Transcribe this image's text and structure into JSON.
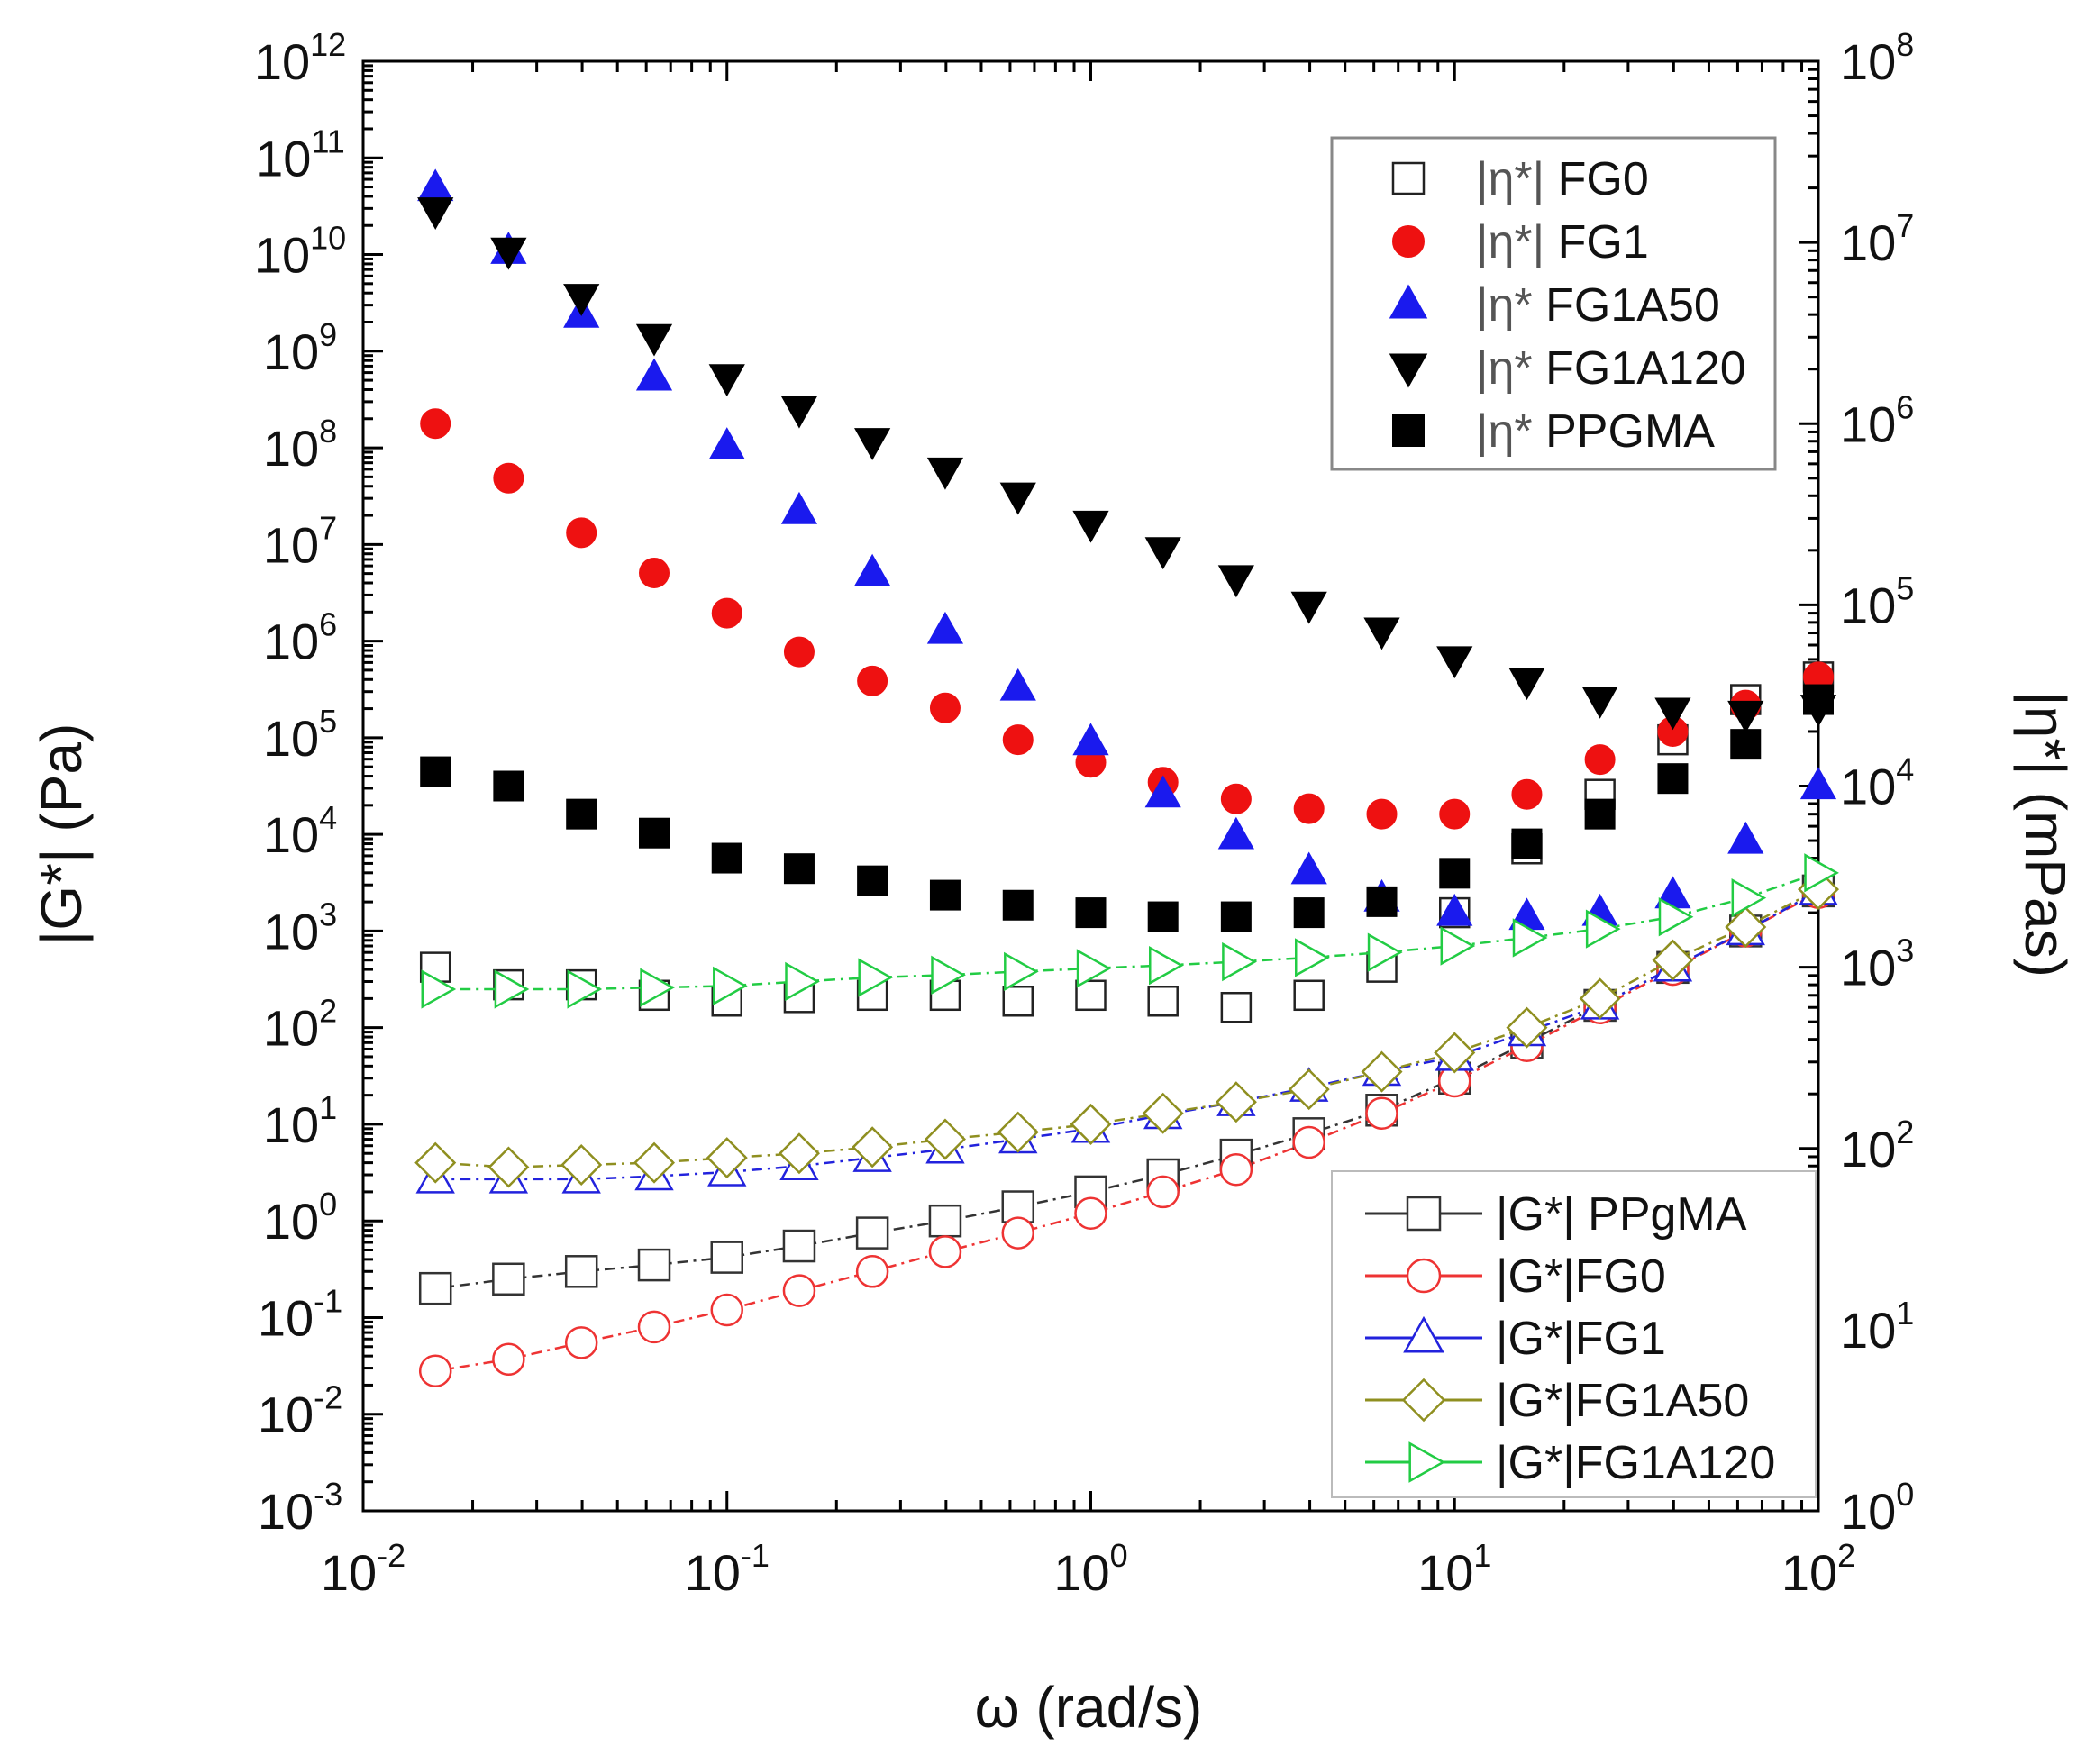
{
  "chart_data": {
    "type": "scatter",
    "x_scale": "log",
    "y_scale": "log",
    "xlabel": "ω (rad/s)",
    "ylabel": "|G*| (Pa)",
    "y2label": "|η*| (mPas)",
    "xlim": [
      0.01,
      100
    ],
    "ylim": [
      0.001,
      1000000000000
    ],
    "y2lim": [
      1,
      100000000
    ],
    "x_tick_labels": [
      "10-2",
      "10-1",
      "100",
      "101",
      "102"
    ],
    "y_tick_labels": [
      "10-3",
      "10-2",
      "10-1",
      "100",
      "101",
      "102",
      "103",
      "104",
      "105",
      "106",
      "107",
      "108",
      "109",
      "1010",
      "1011",
      "1012"
    ],
    "y2_tick_labels": [
      "100",
      "101",
      "102",
      "103",
      "104",
      "105",
      "106",
      "107",
      "108"
    ],
    "x": [
      0.0158,
      0.0251,
      0.0398,
      0.0631,
      0.1,
      0.158,
      0.251,
      0.398,
      0.631,
      1.0,
      1.58,
      2.51,
      3.98,
      6.31,
      10.0,
      15.8,
      25.1,
      39.8,
      63.1,
      100.0
    ],
    "series": [
      {
        "name": "|η*| FG0",
        "legend_prefix": "|η*|",
        "legend_suffix": "FG0",
        "axis": "right",
        "marker": "square",
        "filled": false,
        "color": "#222222",
        "line": false,
        "values": [
          1000,
          800,
          800,
          700,
          650,
          680,
          700,
          700,
          650,
          700,
          650,
          600,
          700,
          1000,
          2000,
          4500,
          9000,
          18000,
          30000,
          40000
        ]
      },
      {
        "name": "|η*| FG1",
        "legend_prefix": "|η*|",
        "legend_suffix": "FG1",
        "axis": "right",
        "marker": "circle",
        "filled": true,
        "color": "#ee1111",
        "line": false,
        "values": [
          1000000,
          500000,
          250000,
          150000,
          90000,
          55000,
          38000,
          27000,
          18000,
          13500,
          10500,
          8500,
          7500,
          7000,
          7000,
          9000,
          14000,
          20000,
          28000,
          40000
        ]
      },
      {
        "name": "|η*FG1A50",
        "legend_prefix": "|η*",
        "legend_suffix": "FG1A50",
        "axis": "right",
        "marker": "triangle-up",
        "filled": true,
        "color": "#1a1aee",
        "line": false,
        "values": [
          20000000,
          9000000,
          4000000,
          1800000,
          750000,
          330000,
          150000,
          72000,
          35000,
          17500,
          9000,
          5300,
          3400,
          2400,
          2000,
          1900,
          2000,
          2500,
          5000,
          10000
        ]
      },
      {
        "name": "|η*FG1A120",
        "legend_prefix": "|η*",
        "legend_suffix": "FG1A120",
        "axis": "right",
        "marker": "triangle-down",
        "filled": true,
        "color": "#000000",
        "line": false,
        "values": [
          15000000,
          9000000,
          5000000,
          3000000,
          1800000,
          1200000,
          800000,
          550000,
          400000,
          280000,
          200000,
          140000,
          100000,
          72000,
          50000,
          38000,
          30000,
          26000,
          25000,
          27000
        ]
      },
      {
        "name": "|η*PPGMA",
        "legend_prefix": "|η*",
        "legend_suffix": "PPGMA",
        "axis": "right",
        "marker": "square",
        "filled": true,
        "color": "#000000",
        "line": false,
        "values": [
          12000,
          10000,
          7000,
          5500,
          4000,
          3500,
          3000,
          2500,
          2200,
          2000,
          1900,
          1900,
          2000,
          2300,
          3300,
          4800,
          7000,
          11000,
          17000,
          30000
        ]
      },
      {
        "name": "|G*| PPgMA",
        "legend_label": "|G*| PPgMA",
        "axis": "left",
        "marker": "square",
        "filled": false,
        "color": "#333333",
        "line": true,
        "values": [
          0.2,
          0.25,
          0.3,
          0.35,
          0.42,
          0.55,
          0.75,
          1.0,
          1.4,
          2.0,
          3.0,
          4.8,
          8.0,
          14.0,
          30.0,
          70.0,
          170.0,
          420.0,
          1000.0,
          2600.0
        ]
      },
      {
        "name": "|G*|FG0",
        "legend_label": "|G*|FG0",
        "axis": "left",
        "marker": "circle",
        "filled": false,
        "color": "#ee3333",
        "line": true,
        "values": [
          0.028,
          0.037,
          0.055,
          0.08,
          0.12,
          0.19,
          0.3,
          0.48,
          0.75,
          1.2,
          2.0,
          3.4,
          6.5,
          13.0,
          28.0,
          65.0,
          160.0,
          400.0,
          1000.0,
          2500.0
        ]
      },
      {
        "name": "|G*|FG1",
        "legend_label": "|G*|FG1",
        "axis": "left",
        "marker": "triangle-up",
        "filled": false,
        "color": "#2222dd",
        "line": true,
        "values": [
          2.7,
          2.7,
          2.7,
          2.9,
          3.2,
          3.7,
          4.5,
          5.5,
          7.0,
          9.0,
          12.5,
          17.0,
          24.0,
          35.0,
          50.0,
          90.0,
          170.0,
          420.0,
          1000.0,
          2600.0
        ]
      },
      {
        "name": "|G*|FG1A50",
        "legend_label": "|G*|FG1A50",
        "axis": "left",
        "marker": "diamond",
        "filled": false,
        "color": "#8f8f20",
        "line": true,
        "values": [
          4.0,
          3.6,
          3.8,
          4.0,
          4.5,
          5.0,
          5.8,
          7.0,
          8.3,
          10.0,
          13.0,
          17.0,
          23.0,
          35.0,
          55.0,
          100.0,
          200.0,
          500.0,
          1100.0,
          2700.0
        ]
      },
      {
        "name": "|G*|FG1A120",
        "legend_label": "|G*|FG1A120",
        "axis": "left",
        "marker": "triangle-right",
        "filled": false,
        "color": "#22cc44",
        "line": true,
        "values": [
          250,
          250,
          250,
          260,
          270,
          300,
          330,
          350,
          380,
          410,
          440,
          480,
          530,
          600,
          700,
          850,
          1050,
          1400,
          2200,
          4000
        ]
      }
    ]
  }
}
